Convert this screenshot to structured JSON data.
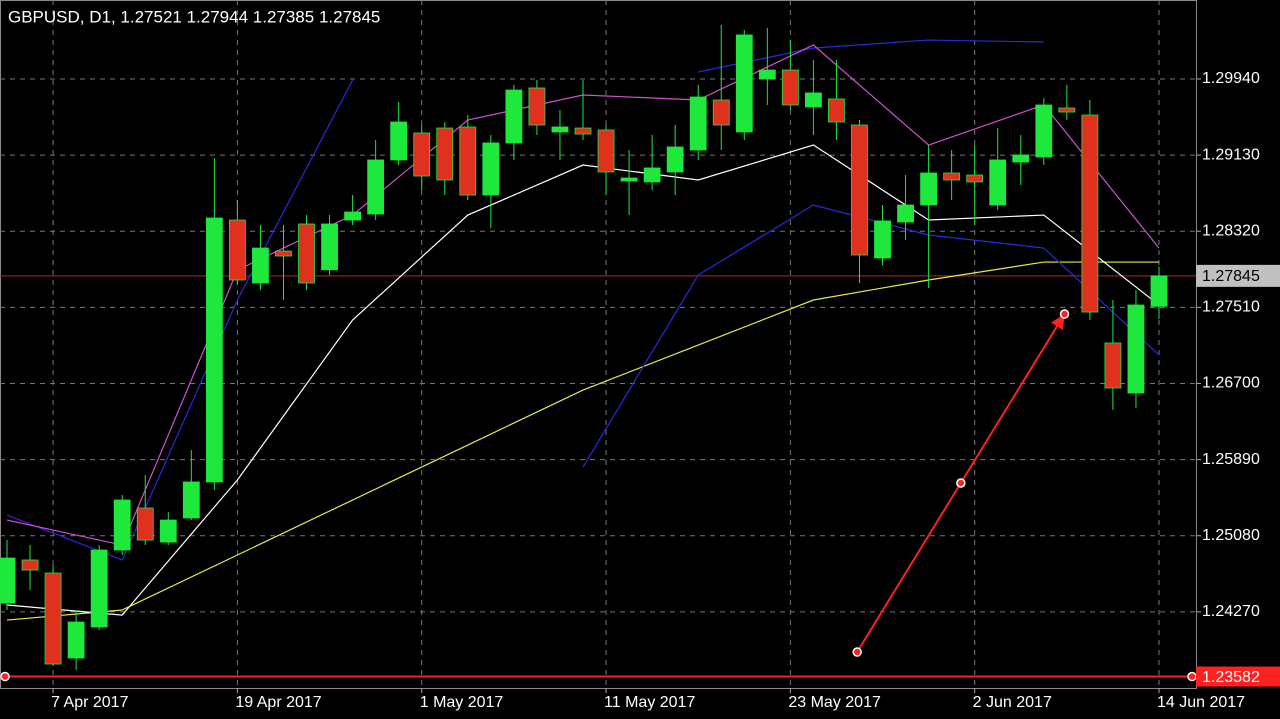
{
  "chart_data": {
    "type": "candlestick",
    "title": "GBPUSD, D1, 1.27521 1.27944 1.27385 1.27845",
    "categories": [
      null,
      null,
      "7 Apr 2017",
      null,
      null,
      null,
      null,
      null,
      null,
      null,
      "19 Apr 2017",
      null,
      null,
      null,
      null,
      null,
      null,
      null,
      "1 May 2017",
      null,
      null,
      null,
      null,
      null,
      null,
      null,
      "11 May 2017",
      null,
      null,
      null,
      null,
      null,
      null,
      null,
      "23 May 2017",
      null,
      null,
      null,
      null,
      null,
      null,
      null,
      "2 Jun 2017",
      null,
      null,
      null,
      null,
      null,
      null,
      null,
      "14 Jun 2017"
    ],
    "open": [
      1.24364,
      1.24822,
      1.24683,
      1.23779,
      1.24109,
      1.24928,
      1.25375,
      1.25013,
      1.25269,
      1.25652,
      1.28439,
      1.27769,
      1.28109,
      1.28397,
      1.2791,
      1.28439,
      1.28503,
      1.29078,
      1.29365,
      1.29418,
      1.29429,
      1.28705,
      1.29259,
      1.29844,
      1.29376,
      1.29418,
      1.29397,
      1.28854,
      1.28844,
      1.2895,
      1.29184,
      1.29716,
      1.29376,
      1.29939,
      1.30035,
      1.29642,
      1.29727,
      1.2945,
      1.28035,
      1.28418,
      1.28599,
      1.28939,
      1.28918,
      1.28599,
      1.29056,
      1.2911,
      1.29631,
      1.29556,
      1.27131,
      1.26598,
      1.27521
    ],
    "high": [
      1.25034,
      1.24981,
      1.24768,
      1.2429,
      1.24981,
      1.25513,
      1.25726,
      1.25332,
      1.25992,
      1.29099,
      1.28652,
      1.28386,
      1.28386,
      1.28492,
      1.28492,
      1.28705,
      1.2929,
      1.29695,
      1.2945,
      1.29482,
      1.29556,
      1.29344,
      1.29876,
      1.29929,
      1.2961,
      1.29929,
      1.2945,
      1.29184,
      1.29344,
      1.2945,
      1.29876,
      1.30514,
      1.30461,
      1.30482,
      1.30354,
      1.30142,
      1.30142,
      1.29503,
      1.28599,
      1.28918,
      1.29237,
      1.29184,
      1.29237,
      1.29418,
      1.29344,
      1.29737,
      1.29876,
      1.29716,
      1.27588,
      1.27694,
      1.27944
    ],
    "low": [
      1.2429,
      1.24502,
      1.23694,
      1.23651,
      1.24077,
      1.24875,
      1.24981,
      1.24981,
      1.25247,
      1.25566,
      1.27748,
      1.27694,
      1.27588,
      1.27694,
      1.27854,
      1.28386,
      1.28439,
      1.29024,
      1.28758,
      1.28705,
      1.28652,
      1.28354,
      1.29078,
      1.29344,
      1.29078,
      1.2929,
      1.28705,
      1.28492,
      1.28758,
      1.28705,
      1.29078,
      1.29184,
      1.2929,
      1.29663,
      1.2961,
      1.29344,
      1.2929,
      1.27769,
      1.2796,
      1.28226,
      1.27716,
      1.28652,
      1.28386,
      1.28546,
      1.28812,
      1.29024,
      1.29503,
      1.27375,
      1.26418,
      1.26439,
      1.27385
    ],
    "close": [
      1.24843,
      1.24715,
      1.23715,
      1.24162,
      1.24928,
      1.2546,
      1.25034,
      1.25247,
      1.25652,
      1.28461,
      1.27801,
      1.28141,
      1.28056,
      1.27769,
      1.28397,
      1.28524,
      1.29078,
      1.29482,
      1.28907,
      1.28865,
      1.28705,
      1.29259,
      1.29822,
      1.2945,
      1.29429,
      1.29354,
      1.2895,
      1.28886,
      1.28993,
      1.29216,
      1.29748,
      1.2945,
      1.30408,
      1.30035,
      1.29663,
      1.29791,
      1.29482,
      1.28067,
      1.28429,
      1.28599,
      1.28939,
      1.28865,
      1.28844,
      1.29078,
      1.29131,
      1.29663,
      1.29588,
      1.2746,
      1.26652,
      1.27535,
      1.27845
    ],
    "up_color": "#1ee83c",
    "down_color": "#e0301e",
    "wick_color": "#1ee83c",
    "ylim": [
      1.2346,
      1.3078
    ],
    "yticks": [
      {
        "value": 1.2994,
        "label": "1.29940"
      },
      {
        "value": 1.2913,
        "label": "1.29130"
      },
      {
        "value": 1.2832,
        "label": "1.28320"
      },
      {
        "value": 1.2751,
        "label": "1.27510"
      },
      {
        "value": 1.267,
        "label": "1.26700"
      },
      {
        "value": 1.2589,
        "label": "1.25890"
      },
      {
        "value": 1.2508,
        "label": "1.25080"
      },
      {
        "value": 1.2427,
        "label": "1.24270"
      }
    ],
    "grid": true,
    "current_price": 1.27845,
    "hline": 1.23582,
    "indicator_x": [
      0,
      5,
      10,
      15,
      20,
      25,
      30,
      35,
      40,
      45,
      50
    ],
    "indicators": [
      {
        "color": "#e8e84a",
        "values": [
          1.24183,
          1.2429,
          1.24875,
          1.2546,
          1.26045,
          1.2663,
          1.27109,
          1.27588,
          1.27801,
          1.27992,
          1.27992
        ]
      },
      {
        "color": "#ffffff",
        "values": [
          1.24343,
          1.24236,
          1.25673,
          1.27375,
          1.28492,
          1.29024,
          1.28865,
          1.29237,
          1.28439,
          1.28492,
          1.27535
        ]
      },
      {
        "color": "#2a2ad8",
        "values": [
          1.253,
          1.24822,
          1.27588,
          1.29929,
          null,
          null,
          1.30014,
          1.30269,
          1.30354,
          1.30333,
          null
        ]
      },
      {
        "color": "#2a2ad8",
        "values": [
          null,
          null,
          null,
          null,
          null,
          1.25811,
          1.27854,
          1.28599,
          1.2828,
          1.28141,
          1.27003
        ]
      },
      {
        "color": "#d050d0",
        "values": [
          1.25247,
          1.24981,
          1.27907,
          1.28492,
          1.29503,
          1.29769,
          1.29716,
          1.30301,
          1.29237,
          1.29663,
          1.28141
        ]
      }
    ],
    "arrow": {
      "color": "#ff2020",
      "x": [
        36.9,
        41.4,
        45.9
      ],
      "values": [
        1.23843,
        1.25641,
        1.27439
      ]
    }
  }
}
